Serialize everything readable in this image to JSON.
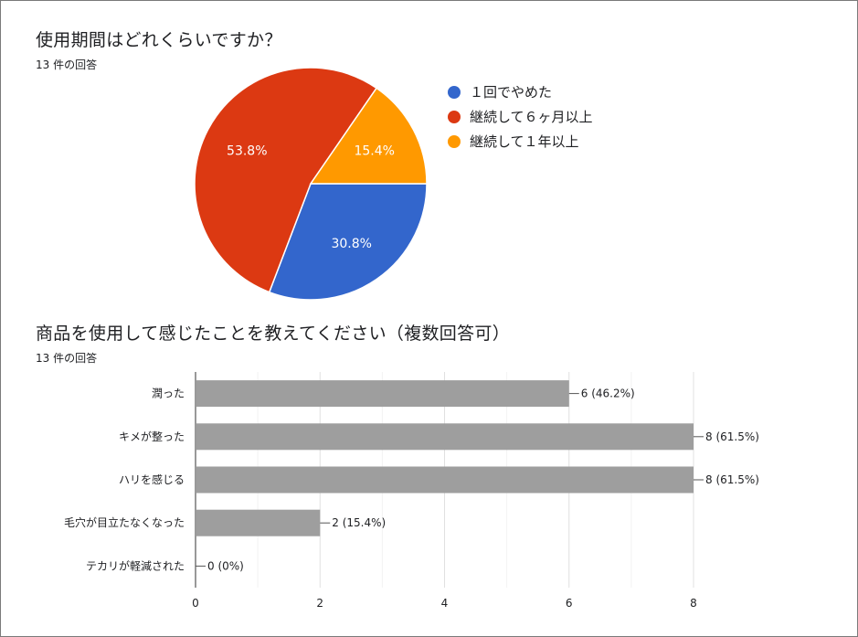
{
  "pie": {
    "title": "使用期間はどれくらいですか？",
    "responses": "13 件の回答"
  },
  "bar": {
    "title": "商品を使用して感じたことを教えてください（複数回答可）",
    "responses": "13 件の回答"
  },
  "chart_data": [
    {
      "type": "pie",
      "title": "使用期間はどれくらいですか？",
      "slices": [
        {
          "label": "１回でやめた",
          "percent": 30.8,
          "percent_label": "30.8%",
          "color": "#3366cc"
        },
        {
          "label": "継続して６ヶ月以上",
          "percent": 53.8,
          "percent_label": "53.8%",
          "color": "#dc3912"
        },
        {
          "label": "継続して１年以上",
          "percent": 15.4,
          "percent_label": "15.4%",
          "color": "#ff9900"
        }
      ],
      "legend_position": "right"
    },
    {
      "type": "bar",
      "orientation": "horizontal",
      "title": "商品を使用して感じたことを教えてください（複数回答可）",
      "categories": [
        "潤った",
        "キメが整った",
        "ハリを感じる",
        "毛穴が目立たなくなった",
        "テカリが軽減された"
      ],
      "values": [
        6,
        8,
        8,
        2,
        0
      ],
      "data_labels": [
        "6 (46.2%)",
        "8 (61.5%)",
        "8 (61.5%)",
        "2 (15.4%)",
        "0 (0%)"
      ],
      "xlim": [
        0,
        8
      ],
      "xticks": [
        0,
        2,
        4,
        6,
        8
      ],
      "bar_color": "#9e9e9e",
      "grid": true
    }
  ]
}
